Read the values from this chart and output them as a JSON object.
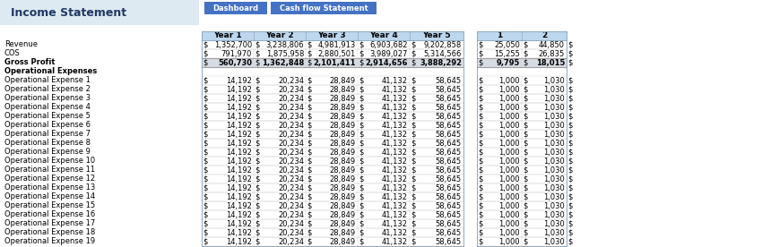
{
  "title": "Income Statement",
  "buttons": [
    "Dashboard",
    "Cash flow Statement"
  ],
  "button_colors": [
    "#4472C4",
    "#4472C4"
  ],
  "header_bg": "#BDD7EE",
  "gross_profit_bg": "#D6DCE4",
  "left_panel_bg": "#DEEAF1",
  "year_headers": [
    "Year 1",
    "Year 2",
    "Year 3",
    "Year 4",
    "Year 5"
  ],
  "extra_headers": [
    "1",
    "2"
  ],
  "row_labels": [
    "Revenue",
    "COS",
    "Gross Profit",
    "Operational Expenses",
    "Operational Expense 1",
    "Operational Expense 2",
    "Operational Expense 3",
    "Operational Expense 4",
    "Operational Expense 5",
    "Operational Expense 6",
    "Operational Expense 7",
    "Operational Expense 8",
    "Operational Expense 9",
    "Operational Expense 10",
    "Operational Expense 11",
    "Operational Expense 12",
    "Operational Expense 13",
    "Operational Expense 14",
    "Operational Expense 15",
    "Operational Expense 16",
    "Operational Expense 17",
    "Operational Expense 18",
    "Operational Expense 19"
  ],
  "main_data": [
    [
      "1,352,700",
      "3,238,806",
      "4,981,913",
      "6,903,682",
      "9,202,858"
    ],
    [
      "791,970",
      "1,875,958",
      "2,880,501",
      "3,989,027",
      "5,314,566"
    ],
    [
      "560,730",
      "1,362,848",
      "2,101,411",
      "2,914,656",
      "3,888,292"
    ],
    [
      null,
      null,
      null,
      null,
      null
    ],
    [
      "14,192",
      "20,234",
      "28,849",
      "41,132",
      "58,645"
    ],
    [
      "14,192",
      "20,234",
      "28,849",
      "41,132",
      "58,645"
    ],
    [
      "14,192",
      "20,234",
      "28,849",
      "41,132",
      "58,645"
    ],
    [
      "14,192",
      "20,234",
      "28,849",
      "41,132",
      "58,645"
    ],
    [
      "14,192",
      "20,234",
      "28,849",
      "41,132",
      "58,645"
    ],
    [
      "14,192",
      "20,234",
      "28,849",
      "41,132",
      "58,645"
    ],
    [
      "14,192",
      "20,234",
      "28,849",
      "41,132",
      "58,645"
    ],
    [
      "14,192",
      "20,234",
      "28,849",
      "41,132",
      "58,645"
    ],
    [
      "14,192",
      "20,234",
      "28,849",
      "41,132",
      "58,645"
    ],
    [
      "14,192",
      "20,234",
      "28,849",
      "41,132",
      "58,645"
    ],
    [
      "14,192",
      "20,234",
      "28,849",
      "41,132",
      "58,645"
    ],
    [
      "14,192",
      "20,234",
      "28,849",
      "41,132",
      "58,645"
    ],
    [
      "14,192",
      "20,234",
      "28,849",
      "41,132",
      "58,645"
    ],
    [
      "14,192",
      "20,234",
      "28,849",
      "41,132",
      "58,645"
    ],
    [
      "14,192",
      "20,234",
      "28,849",
      "41,132",
      "58,645"
    ],
    [
      "14,192",
      "20,234",
      "28,849",
      "41,132",
      "58,645"
    ],
    [
      "14,192",
      "20,234",
      "28,849",
      "41,132",
      "58,645"
    ],
    [
      "14,192",
      "20,234",
      "28,849",
      "41,132",
      "58,645"
    ],
    [
      "14,192",
      "20,234",
      "28,849",
      "41,132",
      "58,645"
    ]
  ],
  "extra_data": [
    [
      "25,050",
      "44,850"
    ],
    [
      "15,255",
      "26,835"
    ],
    [
      "9,795",
      "18,015"
    ],
    [
      null,
      null
    ],
    [
      "1,000",
      "1,030"
    ],
    [
      "1,000",
      "1,030"
    ],
    [
      "1,000",
      "1,030"
    ],
    [
      "1,000",
      "1,030"
    ],
    [
      "1,000",
      "1,030"
    ],
    [
      "1,000",
      "1,030"
    ],
    [
      "1,000",
      "1,030"
    ],
    [
      "1,000",
      "1,030"
    ],
    [
      "1,000",
      "1,030"
    ],
    [
      "1,000",
      "1,030"
    ],
    [
      "1,000",
      "1,030"
    ],
    [
      "1,000",
      "1,030"
    ],
    [
      "1,000",
      "1,030"
    ],
    [
      "1,000",
      "1,030"
    ],
    [
      "1,000",
      "1,030"
    ],
    [
      "1,000",
      "1,030"
    ],
    [
      "1,000",
      "1,030"
    ],
    [
      "1,000",
      "1,030"
    ],
    [
      "1,000",
      "1,030"
    ]
  ],
  "title_fontsize": 9,
  "header_fontsize": 6.5,
  "cell_fontsize": 6.0,
  "label_fontsize": 6.0,
  "bg_color": "#FFFFFF",
  "title_color": "#1F3864",
  "text_color": "#000000"
}
